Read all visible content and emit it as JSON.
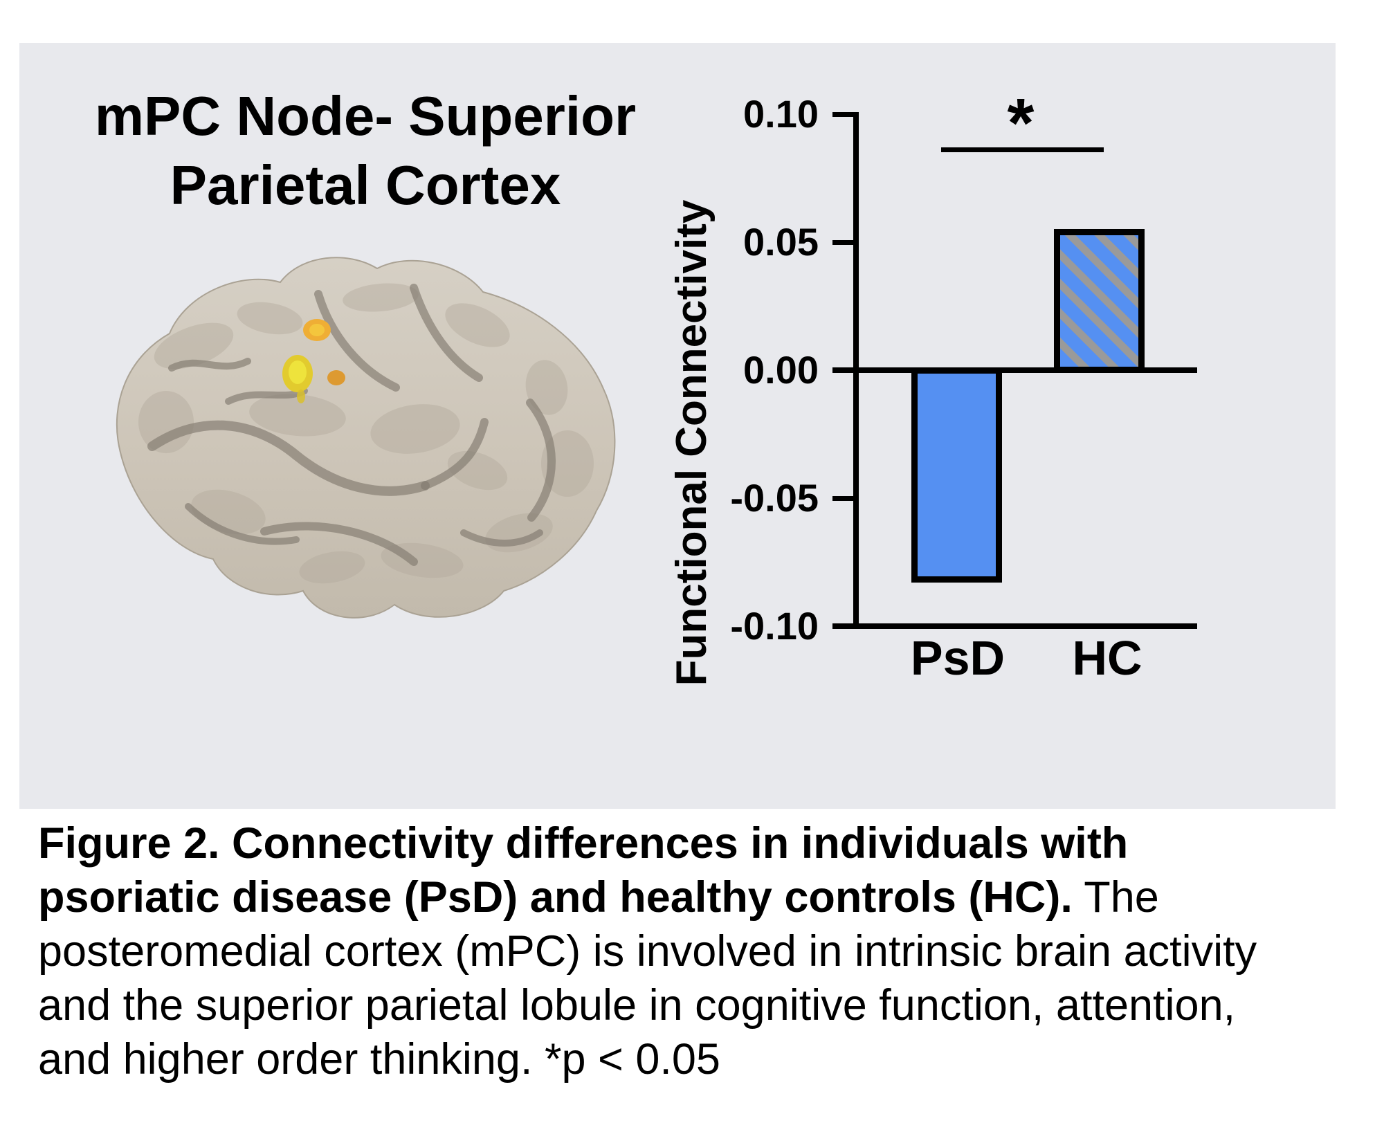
{
  "panel": {
    "background": "#e8e9ed"
  },
  "title": {
    "line1": "mPC Node- Superior",
    "line2": "Parietal Cortex"
  },
  "brain": {
    "base_color": "#cdc5b8",
    "sulci_color": "#817a6e",
    "activation_spot_colors": [
      "#efae35",
      "#e8d832",
      "#dd9a31"
    ]
  },
  "chart_data": {
    "type": "bar",
    "categories": [
      "PsD",
      "HC"
    ],
    "values": [
      -0.083,
      0.055
    ],
    "title": "mPC Node- Superior Parietal Cortex",
    "xlabel": "",
    "ylabel": "Functional Connectivity",
    "ylim": [
      -0.1,
      0.1
    ],
    "yticks": [
      0.1,
      0.05,
      0.0,
      -0.05,
      -0.1
    ],
    "ytick_labels": [
      "0.10",
      "0.05",
      "0.00",
      "-0.05",
      "-0.10"
    ],
    "grid": false,
    "legend_position": "none",
    "bar_colors": [
      "#5590f2",
      "#5590f2"
    ],
    "bar_patterns": [
      "solid",
      "diagonal-hatch"
    ],
    "hatch_color": "#9a9a9a",
    "significance": {
      "label": "*",
      "between": [
        "PsD",
        "HC"
      ]
    }
  },
  "caption": {
    "line1_bold": "Figure 2. Connectivity differences in individuals with",
    "line2_bold": "psoriatic disease (PsD) and healthy controls (HC).",
    "line2_regular": " The",
    "line3": "posteromedial cortex (mPC) is involved in intrinsic brain activity",
    "line4": "and the superior parietal lobule in cognitive function, attention,",
    "line5": "and higher order thinking. *p < 0.05"
  }
}
